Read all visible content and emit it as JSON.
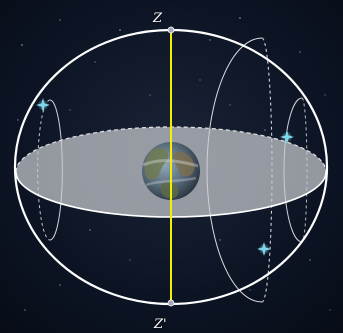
{
  "labels": {
    "zenith": "Z",
    "nadir": "Z'"
  },
  "colors": {
    "background": "#0b1220",
    "sphere_outline": "#ffffff",
    "axis": "#f4f000",
    "horizon_plane": "#c9ccd0",
    "star": "#7fd6ea",
    "pole_marker": "#a7a7c0"
  },
  "icons": {
    "star": "four-point-star-icon",
    "earth": "earth-globe-icon"
  }
}
